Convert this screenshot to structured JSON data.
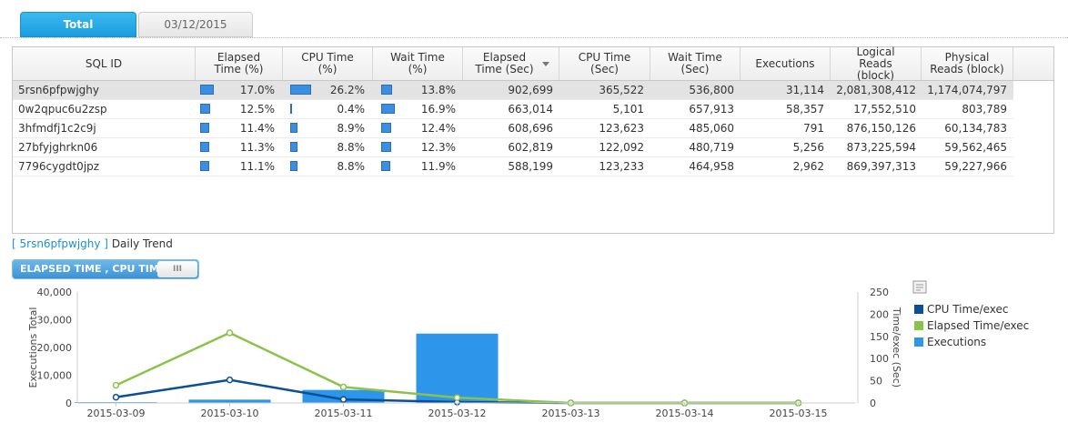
{
  "tabs": [
    {
      "label": "Total",
      "active": true
    },
    {
      "label": "03/12/2015",
      "active": false
    }
  ],
  "table": {
    "columns": [
      {
        "label": "SQL ID"
      },
      {
        "label": "Elapsed Time (%)"
      },
      {
        "label": "CPU Time (%)"
      },
      {
        "label": "Wait Time (%)"
      },
      {
        "label": "Elapsed Time (Sec)",
        "sorted": "desc"
      },
      {
        "label": "CPU Time (Sec)"
      },
      {
        "label": "Wait Time (Sec)"
      },
      {
        "label": "Executions"
      },
      {
        "label": "Logical Reads (block)"
      },
      {
        "label": "Physical Reads (block)"
      }
    ],
    "rows": [
      {
        "sql_id": "5rsn6pfpwjghy",
        "elapsed_pct": "17.0%",
        "elapsed_pct_val": 17.0,
        "cpu_pct": "26.2%",
        "cpu_pct_val": 26.2,
        "wait_pct": "13.8%",
        "wait_pct_val": 13.8,
        "elapsed_sec": "902,699",
        "cpu_sec": "365,522",
        "wait_sec": "536,800",
        "executions": "31,114",
        "logical_reads": "2,081,308,412",
        "physical_reads": "1,174,074,797",
        "selected": true
      },
      {
        "sql_id": "0w2qpuc6u2zsp",
        "elapsed_pct": "12.5%",
        "elapsed_pct_val": 12.5,
        "cpu_pct": "0.4%",
        "cpu_pct_val": 0.4,
        "wait_pct": "16.9%",
        "wait_pct_val": 16.9,
        "elapsed_sec": "663,014",
        "cpu_sec": "5,101",
        "wait_sec": "657,913",
        "executions": "58,357",
        "logical_reads": "17,552,510",
        "physical_reads": "803,789",
        "selected": false
      },
      {
        "sql_id": "3hfmdfj1c2c9j",
        "elapsed_pct": "11.4%",
        "elapsed_pct_val": 11.4,
        "cpu_pct": "8.9%",
        "cpu_pct_val": 8.9,
        "wait_pct": "12.4%",
        "wait_pct_val": 12.4,
        "elapsed_sec": "608,696",
        "cpu_sec": "123,623",
        "wait_sec": "485,060",
        "executions": "791",
        "logical_reads": "876,150,126",
        "physical_reads": "60,134,783",
        "selected": false
      },
      {
        "sql_id": "27bfyjghrkn06",
        "elapsed_pct": "11.3%",
        "elapsed_pct_val": 11.3,
        "cpu_pct": "8.8%",
        "cpu_pct_val": 8.8,
        "wait_pct": "12.3%",
        "wait_pct_val": 12.3,
        "elapsed_sec": "602,819",
        "cpu_sec": "122,092",
        "wait_sec": "480,719",
        "executions": "5,256",
        "logical_reads": "873,225,594",
        "physical_reads": "59,562,465",
        "selected": false
      },
      {
        "sql_id": "7796cygdt0jpz",
        "elapsed_pct": "11.1%",
        "elapsed_pct_val": 11.1,
        "cpu_pct": "8.8%",
        "cpu_pct_val": 8.8,
        "wait_pct": "11.9%",
        "wait_pct_val": 11.9,
        "elapsed_sec": "588,199",
        "cpu_sec": "123,233",
        "wait_sec": "464,958",
        "executions": "2,962",
        "logical_reads": "869,397,313",
        "physical_reads": "59,227,966",
        "selected": false
      }
    ]
  },
  "trend": {
    "sql_id_link": "[ 5rsn6pfpwjghy ]",
    "title": "Daily Trend",
    "toggle_label": "ELAPSED TIME , CPU TIME",
    "toggle_knob": "III"
  },
  "chart_data": {
    "type": "bar",
    "categories": [
      "2015-03-09",
      "2015-03-10",
      "2015-03-11",
      "2015-03-12",
      "2015-03-13",
      "2015-03-14",
      "2015-03-15"
    ],
    "ylabel": "Executions Total",
    "y2label": "Time/exec (Sec)",
    "ylim": [
      0,
      40000
    ],
    "y2lim": [
      0,
      250
    ],
    "yticks": [
      "40,000",
      "30,000",
      "20,000",
      "10,000",
      "0"
    ],
    "y2ticks": [
      "250",
      "200",
      "150",
      "100",
      "50",
      "0"
    ],
    "legend_position": "right",
    "series": [
      {
        "name": "Executions",
        "type": "bar",
        "axis": "left",
        "color": "#2e96ea",
        "values": [
          300,
          1200,
          4700,
          25000,
          0,
          0,
          0
        ]
      },
      {
        "name": "CPU Time/exec",
        "type": "line",
        "axis": "right",
        "color": "#0a4f97",
        "values": [
          13,
          52,
          8,
          2,
          0,
          0,
          0
        ]
      },
      {
        "name": "Elapsed Time/exec",
        "type": "line",
        "axis": "right",
        "color": "#8bc34a",
        "values": [
          40,
          158,
          36,
          12,
          0,
          0,
          0
        ]
      }
    ],
    "legend": [
      "CPU Time/exec",
      "Elapsed Time/exec",
      "Executions"
    ]
  }
}
